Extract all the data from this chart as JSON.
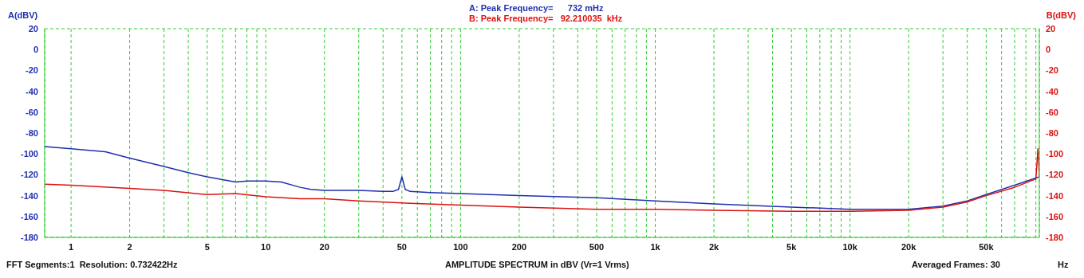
{
  "chart_data": {
    "type": "line",
    "xlabel": "AMPLITUDE SPECTRUM in dBV (Vr=1 Vrms)",
    "ylabel": "A(dBV)",
    "y2label": "B(dBV)",
    "annotations": [
      "A: Peak Frequency=      732 mHz",
      "B: Peak Frequency=   92.210035  kHz",
      "FFT Segments:1  Resolution: 0.732422Hz",
      "Averaged Frames: 30",
      "Hz"
    ],
    "log": "x",
    "grid": true,
    "xlim": [
      0.732,
      93750
    ],
    "xticks": [
      1,
      2,
      {
        "value": 3,
        "label": null
      },
      {
        "value": 4,
        "label": null
      },
      5,
      {
        "value": 6,
        "label": null
      },
      {
        "value": 7,
        "label": null
      },
      {
        "value": 8,
        "label": null
      },
      {
        "value": 9,
        "label": null
      },
      10,
      20,
      {
        "value": 30,
        "label": null
      },
      {
        "value": 40,
        "label": null
      },
      50,
      {
        "value": 60,
        "label": null
      },
      {
        "value": 70,
        "label": null
      },
      {
        "value": 80,
        "label": null
      },
      {
        "value": 90,
        "label": null
      },
      100,
      200,
      {
        "value": 300,
        "label": null
      },
      {
        "value": 400,
        "label": null
      },
      500,
      {
        "value": 600,
        "label": null
      },
      {
        "value": 700,
        "label": null
      },
      {
        "value": 800,
        "label": null
      },
      {
        "value": 900,
        "label": null
      },
      {
        "value": 1000,
        "label": "1k"
      },
      {
        "value": 2000,
        "label": "2k"
      },
      {
        "value": 3000,
        "label": null
      },
      {
        "value": 4000,
        "label": null
      },
      {
        "value": 5000,
        "label": "5k"
      },
      {
        "value": 6000,
        "label": null
      },
      {
        "value": 7000,
        "label": null
      },
      {
        "value": 8000,
        "label": null
      },
      {
        "value": 9000,
        "label": null
      },
      {
        "value": 10000,
        "label": "10k"
      },
      {
        "value": 20000,
        "label": "20k"
      },
      {
        "value": 30000,
        "label": null
      },
      {
        "value": 40000,
        "label": null
      },
      {
        "value": 50000,
        "label": "50k"
      },
      {
        "value": 60000,
        "label": null
      },
      {
        "value": 70000,
        "label": null
      },
      {
        "value": 80000,
        "label": null
      },
      {
        "value": 90000,
        "label": null
      }
    ],
    "ylim": [
      -180,
      20
    ],
    "yticks": [
      -180,
      -160,
      -140,
      -120,
      -100,
      -80,
      -60,
      -40,
      -20,
      0,
      20
    ],
    "y2lim": [
      -180,
      20
    ],
    "y2ticks": [
      -180,
      -160,
      -140,
      -120,
      -100,
      -80,
      -60,
      -40,
      -20,
      0,
      20
    ],
    "series": [
      {
        "color": "#1f2fb0",
        "x": [
          0.732,
          1,
          1.5,
          2,
          3,
          4,
          5,
          7,
          8,
          10,
          12,
          15,
          17,
          20,
          30,
          40,
          45,
          48,
          50,
          52,
          55,
          70,
          100,
          200,
          500,
          1000,
          2000,
          5000,
          10000,
          20000,
          30000,
          40000,
          50000,
          70000,
          93750
        ],
        "values": [
          -93,
          -95,
          -98,
          -104,
          -112,
          -118,
          -122,
          -127,
          -126,
          -126,
          -127,
          -132,
          -134,
          -135,
          -135,
          -136,
          -136,
          -134,
          -122,
          -134,
          -136,
          -137,
          -138,
          -140,
          -142,
          -145,
          -148,
          -151,
          -153,
          -153,
          -150,
          -145,
          -139,
          -130,
          -122
        ]
      },
      {
        "color": "#dd1111",
        "axis": "y2",
        "x": [
          0.732,
          1,
          2,
          3,
          5,
          7,
          10,
          15,
          20,
          30,
          50,
          100,
          200,
          500,
          1000,
          2000,
          5000,
          10000,
          20000,
          30000,
          40000,
          50000,
          70000,
          90000,
          92210,
          93750
        ],
        "values": [
          -129,
          -130,
          -133,
          -135,
          -139,
          -138,
          -141,
          -143,
          -143,
          -145,
          -147,
          -149,
          -151,
          -153,
          -153,
          -154,
          -155,
          -155,
          -154,
          -151,
          -146,
          -140,
          -132,
          -124,
          -95,
          -121
        ]
      }
    ]
  }
}
